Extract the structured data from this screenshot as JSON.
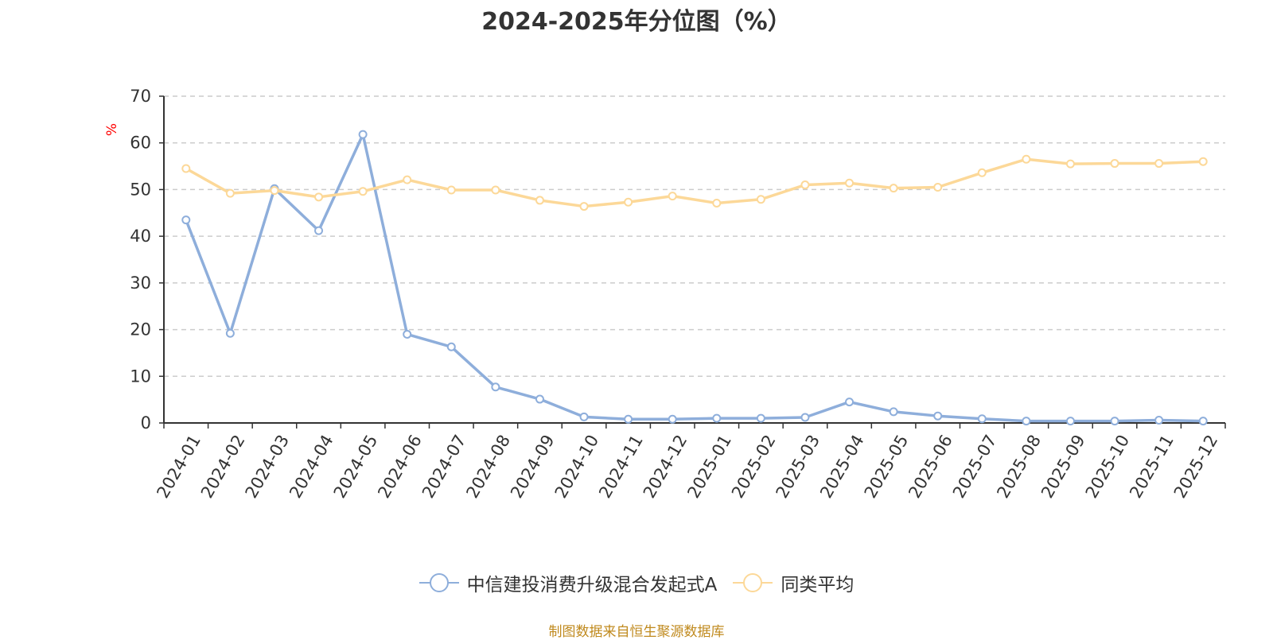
{
  "chart_data": {
    "type": "line",
    "title": "2024-2025年分位图（%）",
    "ylabel": "%",
    "xlabel": "",
    "ylim": [
      0,
      70
    ],
    "yticks": [
      0,
      10,
      20,
      30,
      40,
      50,
      60,
      70
    ],
    "grid": true,
    "legend_position": "bottom",
    "categories": [
      "2024-01",
      "2024-02",
      "2024-03",
      "2024-04",
      "2024-05",
      "2024-06",
      "2024-07",
      "2024-08",
      "2024-09",
      "2024-10",
      "2024-11",
      "2024-12",
      "2025-01",
      "2025-02",
      "2025-03",
      "2025-04",
      "2025-05",
      "2025-06",
      "2025-07",
      "2025-08",
      "2025-09",
      "2025-10",
      "2025-11",
      "2025-12"
    ],
    "series": [
      {
        "name": "中信建投消费升级混合发起式A",
        "color": "#8eaedb",
        "values": [
          43.5,
          19.2,
          50.2,
          41.2,
          61.8,
          19.0,
          16.3,
          7.7,
          5.1,
          1.3,
          0.8,
          0.8,
          1.0,
          1.0,
          1.2,
          4.5,
          2.4,
          1.5,
          0.9,
          0.4,
          0.4,
          0.4,
          0.6,
          0.4
        ]
      },
      {
        "name": "同类平均",
        "color": "#fcd898",
        "values": [
          54.5,
          49.2,
          49.8,
          48.4,
          49.6,
          52.1,
          49.9,
          49.9,
          47.7,
          46.4,
          47.3,
          48.6,
          47.1,
          47.9,
          51.0,
          51.4,
          50.3,
          50.5,
          53.6,
          56.5,
          55.5,
          55.6,
          55.6,
          56.0
        ]
      }
    ]
  },
  "source_text": "制图数据来自恒生聚源数据库"
}
